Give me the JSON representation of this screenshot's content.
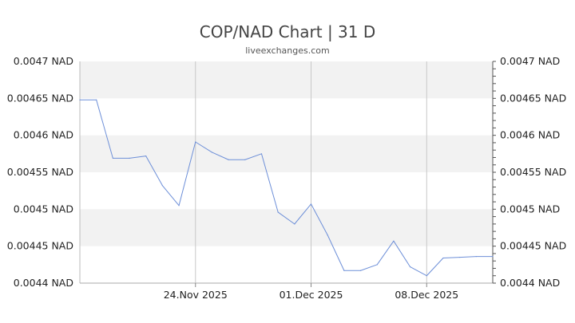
{
  "chart_data": {
    "type": "line",
    "title": "COP/NAD Chart | 31 D",
    "subtitle": "liveexchanges.com",
    "xlabel": "",
    "ylabel": "",
    "grid": true,
    "ylim": [
      0.0044,
      0.0047
    ],
    "yticks": [
      "0.0047 NAD",
      "0.00465 NAD",
      "0.0046 NAD",
      "0.00455 NAD",
      "0.0045 NAD",
      "0.00445 NAD",
      "0.0044 NAD"
    ],
    "ytick_values": [
      0.0047,
      0.00465,
      0.0046,
      0.00455,
      0.0045,
      0.00445,
      0.0044
    ],
    "xlim": [
      "2025-11-17",
      "2025-12-12"
    ],
    "xticks": [
      {
        "date": "2025-11-24",
        "label": "24.Nov 2025"
      },
      {
        "date": "2025-12-01",
        "label": "01.Dec 2025"
      },
      {
        "date": "2025-12-08",
        "label": "08.Dec 2025"
      }
    ],
    "series": [
      {
        "color": "#6d8fd8",
        "x": [
          "2025-11-17",
          "2025-11-18",
          "2025-11-19",
          "2025-11-20",
          "2025-11-21",
          "2025-11-22",
          "2025-11-23",
          "2025-11-24",
          "2025-11-25",
          "2025-11-26",
          "2025-11-27",
          "2025-11-28",
          "2025-11-29",
          "2025-11-30",
          "2025-12-01",
          "2025-12-02",
          "2025-12-03",
          "2025-12-04",
          "2025-12-05",
          "2025-12-06",
          "2025-12-07",
          "2025-12-08",
          "2025-12-09",
          "2025-12-10",
          "2025-12-11",
          "2025-12-12"
        ],
        "values": [
          0.004648,
          0.004648,
          0.004569,
          0.004569,
          0.004572,
          0.004532,
          0.004505,
          0.004591,
          0.004577,
          0.004567,
          0.004567,
          0.004575,
          0.004496,
          0.00448,
          0.004507,
          0.004465,
          0.004417,
          0.004417,
          0.004425,
          0.004457,
          0.004422,
          0.00441,
          0.004434,
          0.004435,
          0.004436,
          0.004436
        ]
      }
    ]
  }
}
